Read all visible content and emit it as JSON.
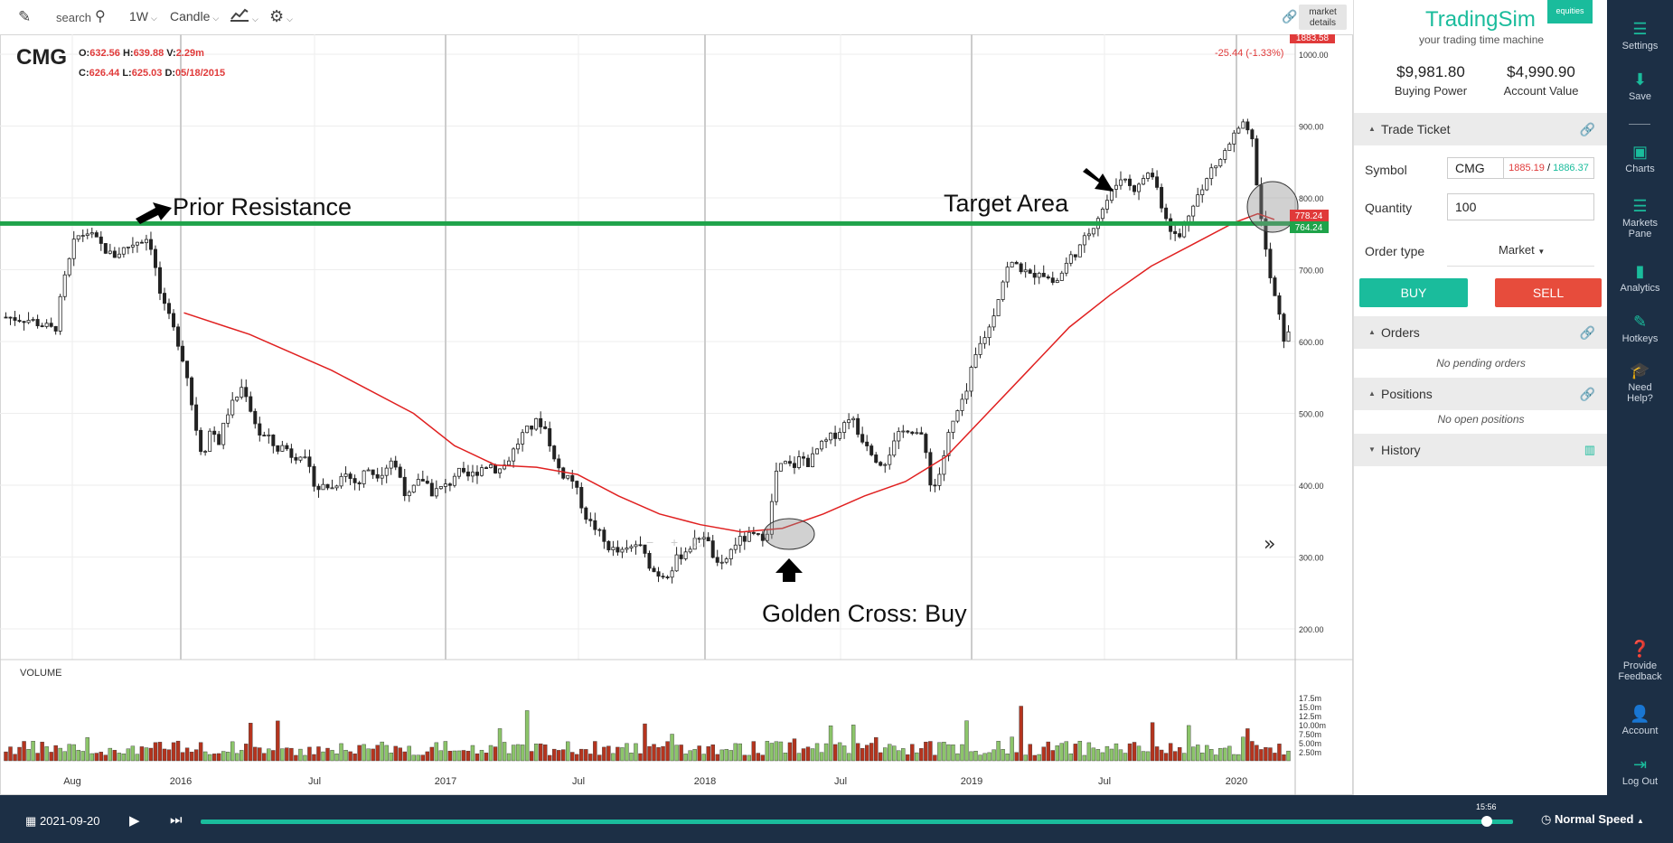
{
  "toolbar": {
    "search_placeholder": "search",
    "interval": "1W",
    "chart_type": "Candle",
    "market_details": [
      "market",
      "details"
    ]
  },
  "legend": {
    "symbol": "CMG",
    "o_label": "O:",
    "o": "632.56",
    "h_label": "H:",
    "h": "639.88",
    "v_label": "V:",
    "v": "2.29m",
    "c_label": "C:",
    "c": "626.44",
    "l_label": "L:",
    "l": "625.03",
    "d_label": "D:",
    "d": "05/18/2015",
    "change": "-25.44 (-1.33%)"
  },
  "price_tags": {
    "last": "1883.58",
    "ma": "778.24",
    "line": "764.24"
  },
  "annotations": {
    "prior_resistance": "Prior Resistance",
    "target_area": "Target Area",
    "golden_cross": "Golden Cross: Buy"
  },
  "volume_label": "VOLUME",
  "chart_data": {
    "type": "candlestick",
    "symbol": "CMG",
    "interval": "1W",
    "price_axis": {
      "ticks": [
        "1000.00",
        "900.00",
        "800.00",
        "700.00",
        "600.00",
        "500.00",
        "400.00",
        "300.00",
        "200.00"
      ],
      "range": [
        175,
        1050
      ]
    },
    "volume_axis": {
      "ticks": [
        "17.5m",
        "15.0m",
        "12.5m",
        "10.00m",
        "7.50m",
        "5.00m",
        "2.50m"
      ],
      "range": [
        0,
        20
      ]
    },
    "x_ticks": [
      "Aug",
      "2016",
      "Jul",
      "2017",
      "Jul",
      "2018",
      "Jul",
      "2019",
      "Jul",
      "2020"
    ],
    "price_path": [
      [
        0,
        634
      ],
      [
        6,
        630
      ],
      [
        12,
        615
      ],
      [
        14,
        680
      ],
      [
        17,
        745
      ],
      [
        20,
        752
      ],
      [
        23,
        735
      ],
      [
        26,
        718
      ],
      [
        29,
        730
      ],
      [
        32,
        740
      ],
      [
        35,
        745
      ],
      [
        36,
        715
      ],
      [
        38,
        655
      ],
      [
        40,
        630
      ],
      [
        42,
        600
      ],
      [
        44,
        560
      ],
      [
        46,
        490
      ],
      [
        48,
        440
      ],
      [
        50,
        480
      ],
      [
        52,
        460
      ],
      [
        54,
        500
      ],
      [
        56,
        520
      ],
      [
        58,
        540
      ],
      [
        60,
        500
      ],
      [
        62,
        470
      ],
      [
        64,
        465
      ],
      [
        66,
        450
      ],
      [
        68,
        455
      ],
      [
        70,
        440
      ],
      [
        72,
        445
      ],
      [
        74,
        420
      ],
      [
        76,
        395
      ],
      [
        78,
        400
      ],
      [
        80,
        395
      ],
      [
        82,
        420
      ],
      [
        84,
        410
      ],
      [
        86,
        400
      ],
      [
        88,
        425
      ],
      [
        90,
        415
      ],
      [
        92,
        420
      ],
      [
        94,
        435
      ],
      [
        96,
        415
      ],
      [
        98,
        380
      ],
      [
        100,
        400
      ],
      [
        102,
        410
      ],
      [
        104,
        390
      ],
      [
        106,
        395
      ],
      [
        108,
        400
      ],
      [
        110,
        420
      ],
      [
        112,
        410
      ],
      [
        114,
        415
      ],
      [
        116,
        425
      ],
      [
        118,
        430
      ],
      [
        120,
        420
      ],
      [
        122,
        430
      ],
      [
        124,
        450
      ],
      [
        126,
        470
      ],
      [
        128,
        480
      ],
      [
        130,
        490
      ],
      [
        132,
        475
      ],
      [
        134,
        430
      ],
      [
        136,
        415
      ],
      [
        138,
        410
      ],
      [
        140,
        380
      ],
      [
        142,
        350
      ],
      [
        144,
        340
      ],
      [
        146,
        320
      ],
      [
        148,
        310
      ],
      [
        150,
        305
      ],
      [
        152,
        310
      ],
      [
        154,
        320
      ],
      [
        156,
        300
      ],
      [
        158,
        280
      ],
      [
        160,
        275
      ],
      [
        162,
        280
      ],
      [
        164,
        300
      ],
      [
        166,
        310
      ],
      [
        168,
        320
      ],
      [
        170,
        335
      ],
      [
        172,
        310
      ],
      [
        174,
        280
      ],
      [
        176,
        300
      ],
      [
        178,
        320
      ],
      [
        180,
        325
      ],
      [
        182,
        330
      ],
      [
        184,
        325
      ],
      [
        186,
        340
      ],
      [
        188,
        420
      ],
      [
        190,
        430
      ],
      [
        192,
        425
      ],
      [
        194,
        440
      ],
      [
        196,
        430
      ],
      [
        198,
        450
      ],
      [
        200,
        460
      ],
      [
        202,
        470
      ],
      [
        204,
        480
      ],
      [
        206,
        500
      ],
      [
        208,
        470
      ],
      [
        210,
        460
      ],
      [
        212,
        440
      ],
      [
        214,
        430
      ],
      [
        216,
        450
      ],
      [
        218,
        470
      ],
      [
        220,
        480
      ],
      [
        222,
        475
      ],
      [
        224,
        460
      ],
      [
        226,
        390
      ],
      [
        228,
        420
      ],
      [
        230,
        470
      ],
      [
        232,
        500
      ],
      [
        234,
        520
      ],
      [
        236,
        570
      ],
      [
        238,
        600
      ],
      [
        240,
        620
      ],
      [
        242,
        660
      ],
      [
        244,
        700
      ],
      [
        246,
        710
      ],
      [
        248,
        700
      ],
      [
        250,
        690
      ],
      [
        252,
        700
      ],
      [
        254,
        690
      ],
      [
        256,
        680
      ],
      [
        258,
        700
      ],
      [
        260,
        720
      ],
      [
        262,
        730
      ],
      [
        264,
        750
      ],
      [
        266,
        770
      ],
      [
        268,
        790
      ],
      [
        270,
        810
      ],
      [
        272,
        830
      ],
      [
        274,
        820
      ],
      [
        276,
        810
      ],
      [
        278,
        835
      ],
      [
        280,
        830
      ],
      [
        282,
        790
      ],
      [
        284,
        760
      ],
      [
        286,
        740
      ],
      [
        288,
        770
      ],
      [
        290,
        800
      ],
      [
        292,
        810
      ],
      [
        294,
        840
      ],
      [
        296,
        850
      ],
      [
        298,
        870
      ],
      [
        300,
        890
      ],
      [
        302,
        900
      ],
      [
        304,
        880
      ],
      [
        306,
        780
      ],
      [
        308,
        700
      ],
      [
        310,
        650
      ],
      [
        312,
        600
      ],
      [
        314,
        620
      ]
    ],
    "ma_path": [
      [
        44,
        640
      ],
      [
        60,
        610
      ],
      [
        80,
        560
      ],
      [
        100,
        500
      ],
      [
        110,
        455
      ],
      [
        120,
        428
      ],
      [
        130,
        425
      ],
      [
        140,
        415
      ],
      [
        150,
        385
      ],
      [
        160,
        360
      ],
      [
        170,
        345
      ],
      [
        180,
        335
      ],
      [
        190,
        340
      ],
      [
        200,
        360
      ],
      [
        210,
        385
      ],
      [
        220,
        405
      ],
      [
        230,
        440
      ],
      [
        240,
        500
      ],
      [
        250,
        560
      ],
      [
        260,
        620
      ],
      [
        270,
        665
      ],
      [
        280,
        705
      ],
      [
        290,
        735
      ],
      [
        300,
        765
      ],
      [
        306,
        778
      ],
      [
        310,
        770
      ]
    ],
    "horizontal_line": 764.24
  },
  "panel": {
    "brand": "TradingSim",
    "brand_badge": "equities",
    "tagline": "your trading time machine",
    "buying_power_value": "$9,981.80",
    "buying_power_label": "Buying Power",
    "account_value_value": "$4,990.90",
    "account_value_label": "Account Value",
    "trade_ticket": "Trade Ticket",
    "symbol_label": "Symbol",
    "symbol_value": "CMG",
    "bid": "1885.19",
    "ask": "1886.37",
    "quantity_label": "Quantity",
    "quantity_value": "100",
    "order_type_label": "Order type",
    "order_type_value": "Market",
    "buy": "BUY",
    "sell": "SELL",
    "orders": "Orders",
    "orders_empty": "No pending orders",
    "positions": "Positions",
    "positions_empty": "No open positions",
    "history": "History"
  },
  "sidebar": {
    "settings": "Settings",
    "save": "Save",
    "charts": "Charts",
    "markets_pane": [
      "Markets",
      "Pane"
    ],
    "analytics": "Analytics",
    "hotkeys": "Hotkeys",
    "need_help": [
      "Need",
      "Help?"
    ],
    "provide_feedback": [
      "Provide",
      "Feedback"
    ],
    "account": "Account",
    "log_out": "Log Out"
  },
  "bottom": {
    "date": "2021-09-20",
    "time": "15:56",
    "speed": "Normal Speed",
    "progress": 0.98
  }
}
